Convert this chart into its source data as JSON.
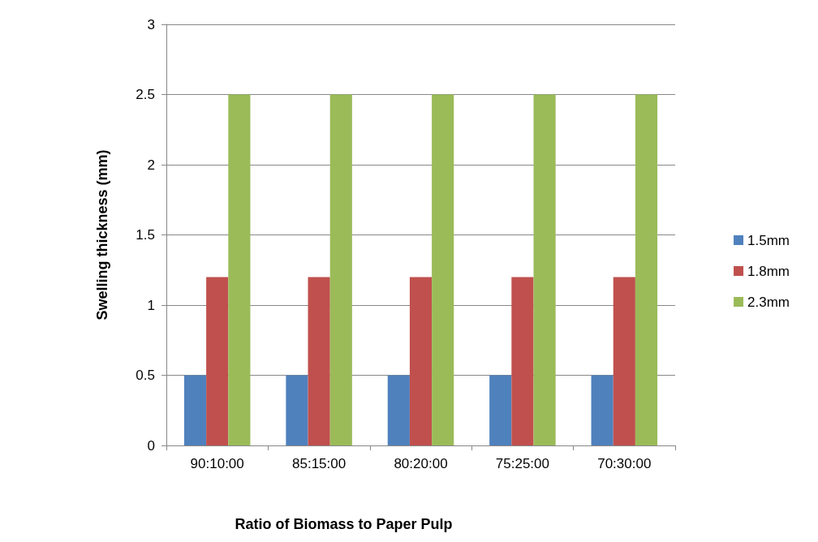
{
  "chart_data": {
    "type": "bar",
    "xlabel": "Ratio of Biomass to Paper Pulp",
    "ylabel": "Swelling thickness (mm)",
    "categories": [
      "90:10:00",
      "85:15:00",
      "80:20:00",
      "75:25:00",
      "70:30:00"
    ],
    "series": [
      {
        "name": "1.5mm",
        "color": "#4f81bd",
        "values": [
          0.5,
          0.5,
          0.5,
          0.5,
          0.5
        ]
      },
      {
        "name": "1.8mm",
        "color": "#c0504d",
        "values": [
          1.2,
          1.2,
          1.2,
          1.2,
          1.2
        ]
      },
      {
        "name": "2.3mm",
        "color": "#9bbb59",
        "values": [
          2.5,
          2.5,
          2.5,
          2.5,
          2.5
        ]
      }
    ],
    "ylim": [
      0,
      3
    ],
    "yticks": [
      0,
      0.5,
      1,
      1.5,
      2,
      2.5,
      3
    ],
    "grid": "y",
    "legend": "right"
  }
}
